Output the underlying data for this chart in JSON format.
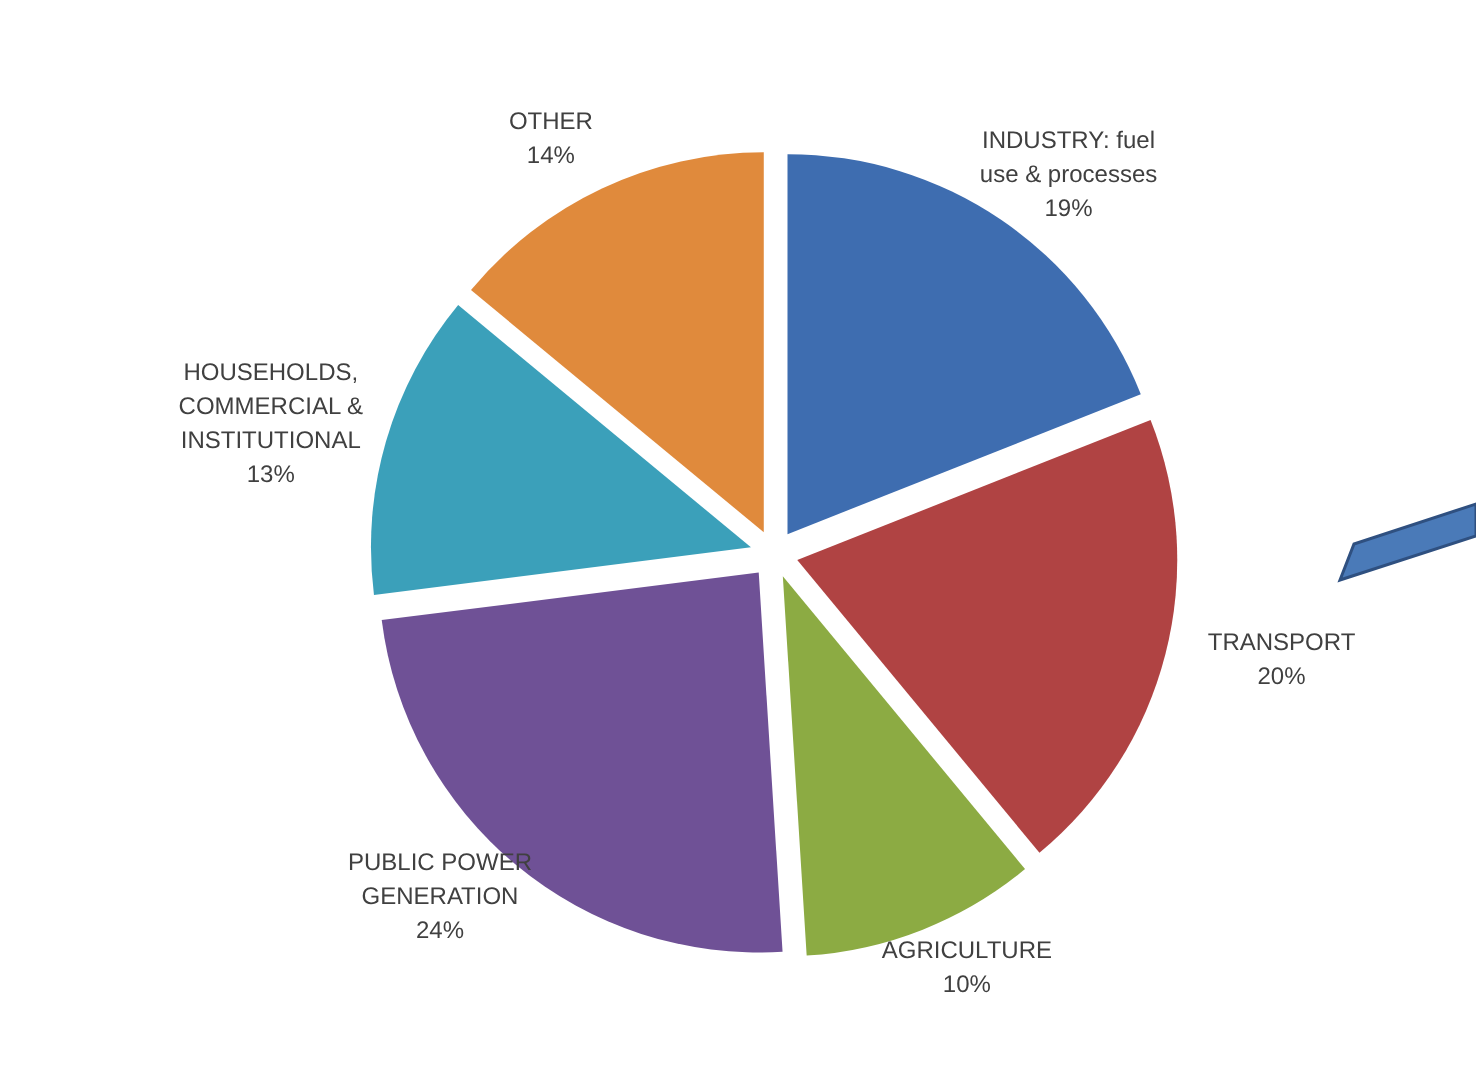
{
  "chart_data": {
    "type": "pie",
    "categories": [
      "INDUSTRY: fuel use & processes",
      "TRANSPORT",
      "AGRICULTURE",
      "PUBLIC POWER GENERATION",
      "HOUSEHOLDS, COMMERCIAL & INSTITUTIONAL",
      "OTHER"
    ],
    "values": [
      19,
      20,
      10,
      24,
      13,
      14
    ],
    "value_labels": [
      "19%",
      "20%",
      "10%",
      "24%",
      "13%",
      "14%"
    ],
    "colors": [
      "#3e6db0",
      "#b04343",
      "#8cab43",
      "#6f5196",
      "#3ba0ba",
      "#e08a3c"
    ],
    "legend": false
  }
}
